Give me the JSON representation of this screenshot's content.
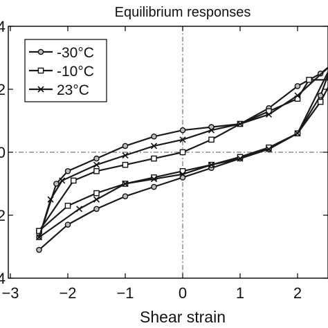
{
  "chart_data": {
    "type": "line",
    "title": "Equilibrium responses",
    "xlabel": "Shear strain",
    "ylabel": "",
    "xlim": [
      -3,
      2.6
    ],
    "ylim": [
      -4,
      4
    ],
    "x_ticks": [
      "−3",
      "−2",
      "−1",
      "0",
      "1",
      "2"
    ],
    "y_ticks": [
      "4",
      "2",
      "0",
      "2",
      "4"
    ],
    "y_tick_values": [
      4,
      2,
      0,
      -2,
      -4
    ],
    "grid": false,
    "reference_lines": {
      "x": 0,
      "y": 0
    },
    "legend_position": "top-left",
    "series": [
      {
        "name": "-30°C",
        "marker": "circle",
        "x": [
          -2.5,
          -2.0,
          -1.5,
          -1.0,
          -0.5,
          0.0,
          0.5,
          1.0,
          1.5,
          2.0,
          2.4,
          2.6,
          2.4,
          2.0,
          1.5,
          1.0,
          0.5,
          0.0,
          -0.5,
          -1.0,
          -1.5,
          -2.0,
          -2.2,
          -2.5
        ],
        "y": [
          -3.1,
          -2.3,
          -1.8,
          -1.4,
          -1.1,
          -0.8,
          -0.5,
          -0.2,
          0.1,
          0.6,
          1.8,
          2.8,
          2.5,
          2.1,
          1.4,
          0.9,
          0.8,
          0.7,
          0.5,
          0.2,
          -0.2,
          -0.6,
          -1.0,
          -2.7
        ]
      },
      {
        "name": "-10°C",
        "marker": "square",
        "x": [
          -2.5,
          -2.0,
          -1.5,
          -1.0,
          -0.5,
          0.0,
          0.5,
          1.0,
          1.5,
          2.0,
          2.4,
          2.6,
          2.2,
          2.0,
          1.5,
          1.0,
          0.5,
          0.0,
          -0.5,
          -1.0,
          -1.5,
          -1.9,
          -2.5
        ],
        "y": [
          -2.5,
          -1.7,
          -1.3,
          -1.0,
          -0.8,
          -0.6,
          -0.4,
          -0.15,
          0.15,
          0.6,
          1.6,
          2.3,
          2.3,
          1.7,
          1.3,
          0.9,
          0.4,
          0.0,
          -0.2,
          -0.4,
          -0.6,
          -0.9,
          -2.5
        ]
      },
      {
        "name": "23°C",
        "marker": "x",
        "x": [
          -2.5,
          -1.8,
          -1.5,
          -1.0,
          -0.5,
          0.0,
          0.5,
          1.0,
          1.5,
          2.0,
          2.6,
          2.0,
          1.5,
          1.0,
          0.5,
          0.0,
          -0.5,
          -1.0,
          -1.5,
          -2.1,
          -2.3,
          -2.5
        ],
        "y": [
          -2.7,
          -1.8,
          -1.5,
          -1.0,
          -0.85,
          -0.7,
          -0.4,
          -0.2,
          0.1,
          0.6,
          2.8,
          1.8,
          1.2,
          0.9,
          0.7,
          0.4,
          0.2,
          -0.1,
          -0.4,
          -0.9,
          -1.5,
          -2.7
        ]
      }
    ]
  }
}
